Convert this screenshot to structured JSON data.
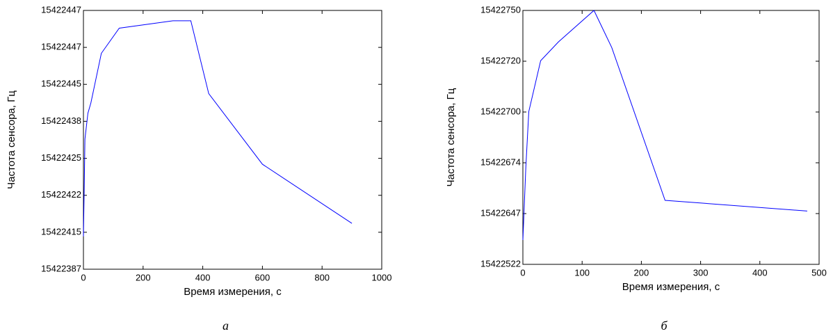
{
  "chart_data": [
    {
      "type": "line",
      "caption": "а",
      "xlabel": "Время измерения, с",
      "ylabel": "Частота сенсора, Гц",
      "x": [
        0,
        3,
        5,
        15,
        25,
        60,
        120,
        300,
        360,
        420,
        600,
        900
      ],
      "series": [
        {
          "color": "#0000ff",
          "values": [
            0.89,
            2.39,
            3.52,
            4.22,
            4.5,
            5.84,
            6.52,
            6.72,
            6.72,
            4.75,
            2.84,
            1.24
          ]
        }
      ],
      "xlim": [
        0,
        1000
      ],
      "xticks": [
        0,
        200,
        400,
        600,
        800,
        1000
      ],
      "ylim": [
        0,
        7
      ],
      "yticks": [
        {
          "value": 0,
          "label": "15422387"
        },
        {
          "value": 1,
          "label": "15422415"
        },
        {
          "value": 2,
          "label": "15422422"
        },
        {
          "value": 3,
          "label": "15422425"
        },
        {
          "value": 4,
          "label": "15422438"
        },
        {
          "value": 5,
          "label": "15422445"
        },
        {
          "value": 6,
          "label": "15422447"
        },
        {
          "value": 7,
          "label": "15422447"
        }
      ]
    },
    {
      "type": "line",
      "caption": "б",
      "xlabel": "Время измерения, с",
      "ylabel": "Частота сенсора, Гц",
      "x": [
        0,
        5,
        10,
        30,
        60,
        120,
        150,
        240,
        480
      ],
      "series": [
        {
          "color": "#0000ff",
          "values": [
            0.48,
            1.92,
            3.01,
            4.01,
            4.38,
            5.0,
            4.27,
            1.26,
            1.05
          ]
        }
      ],
      "xlim": [
        0,
        500
      ],
      "xticks": [
        0,
        100,
        200,
        300,
        400,
        500
      ],
      "ylim": [
        0,
        5
      ],
      "yticks": [
        {
          "value": 0,
          "label": "15422522"
        },
        {
          "value": 1,
          "label": "15422647"
        },
        {
          "value": 2,
          "label": "15422674"
        },
        {
          "value": 3,
          "label": "15422700"
        },
        {
          "value": 4,
          "label": "15422720"
        },
        {
          "value": 5,
          "label": "15422750"
        }
      ]
    }
  ]
}
